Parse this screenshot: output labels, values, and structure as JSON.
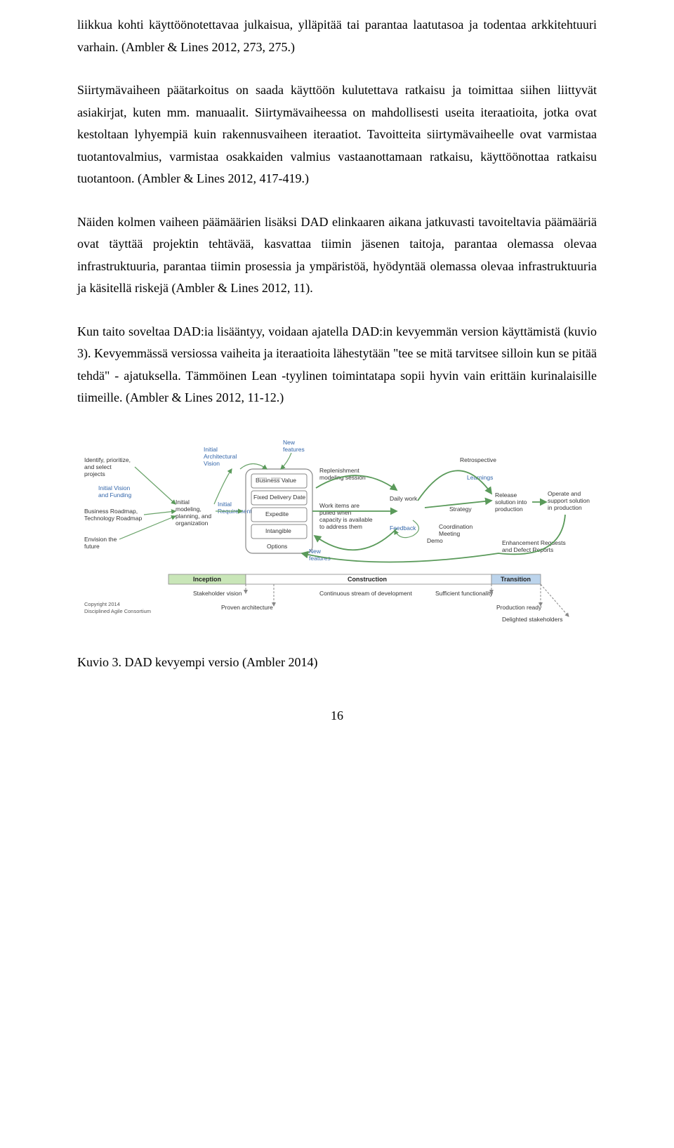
{
  "paragraphs": {
    "p1": "liikkua kohti käyttöönotettavaa julkaisua, ylläpitää tai parantaa laatutasoa ja todentaa arkkitehtuuri varhain. (Ambler & Lines 2012, 273, 275.)",
    "p2": "Siirtymävaiheen päätarkoitus on saada käyttöön kulutettava ratkaisu ja toimittaa siihen liittyvät asiakirjat, kuten mm. manuaalit. Siirtymävaiheessa on mahdollisesti useita iteraatioita, jotka ovat kestoltaan lyhyempiä kuin rakennusvaiheen iteraatiot. Tavoitteita siirtymävaiheelle ovat varmistaa tuotantovalmius, varmistaa osakkaiden valmius vastaanottamaan ratkaisu, käyttöönottaa ratkaisu tuotantoon. (Ambler & Lines 2012, 417-419.)",
    "p3": "Näiden kolmen vaiheen päämäärien lisäksi DAD elinkaaren aikana jatkuvasti tavoiteltavia päämääriä ovat täyttää projektin tehtävää, kasvattaa tiimin jäsenen taitoja, parantaa olemassa olevaa infrastruktuuria, parantaa tiimin prosessia ja ympäristöä, hyödyntää olemassa olevaa infrastruktuuria ja käsitellä riskejä (Ambler & Lines 2012, 11).",
    "p4": "Kun taito soveltaa DAD:ia lisääntyy, voidaan ajatella DAD:in kevyemmän version käyttämistä (kuvio 3). Kevyemmässä versiossa vaiheita ja iteraatioita lähestytään \"tee se mitä tarvitsee silloin kun se pitää tehdä\" - ajatuksella. Tämmöinen Lean -tyylinen toimintatapa sopii hyvin vain erittäin kurinalaisille tiimeille. (Ambler & Lines 2012, 11-12.)"
  },
  "caption": "Kuvio 3. DAD kevyempi versio (Ambler 2014)",
  "page_number": "16",
  "diagram": {
    "type": "flowchart",
    "background_color": "#ffffff",
    "arrow_color": "#6aa36a",
    "blue_text_color": "#3366aa",
    "phases": {
      "inception": {
        "label": "Inception",
        "fill": "#c9e6b8"
      },
      "construction": {
        "label": "Construction",
        "fill": "#ffffff"
      },
      "transition": {
        "label": "Transition",
        "fill": "#bcd4ec"
      }
    },
    "left_inputs": {
      "identify": "Identify, prioritize,\nand select\nprojects",
      "initial_vision": "Initial Vision\nand Funding",
      "roadmap": "Business Roadmap,\nTechnology Roadmap",
      "envision": "Envision the\nfuture"
    },
    "center_inputs": {
      "arch_vision": "Initial\nArchitectural\nVision",
      "initial_modeling": "Initial\nmodeling,\nplanning, and\norganization",
      "initial_reqs": "Initial\nRequirements",
      "new_features": "New\nfeatures",
      "business_value": "Business Value",
      "fixed_date": "Fixed Delivery Date",
      "expedite": "Expedite",
      "intangible": "Intangible",
      "options": "Options",
      "replenishment": "Replenishment\nmodeling session",
      "work_items": "Work items are\npulled when\ncapacity is available\nto address them",
      "new_features2": "New\nfeatures"
    },
    "flow": {
      "daily_work": "Daily work",
      "feedback": "Feedback",
      "demo": "Demo",
      "retrospective": "Retrospective",
      "learnings": "Learnings",
      "strategy": "Strategy",
      "coord": "Coordination\nMeeting"
    },
    "right_outputs": {
      "release": "Release\nsolution into\nproduction",
      "operate": "Operate and\nsupport solution\nin production",
      "enhancement": "Enhancement Requests\nand Defect Reports"
    },
    "milestones": {
      "stakeholder": "Stakeholder vision",
      "proven": "Proven architecture",
      "continuous": "Continuous stream of development",
      "sufficient": "Sufficient functionality",
      "production_ready": "Production ready",
      "delighted": "Delighted stakeholders"
    },
    "copyright": "Copyright 2014\nDisciplined Agile Consortium"
  }
}
